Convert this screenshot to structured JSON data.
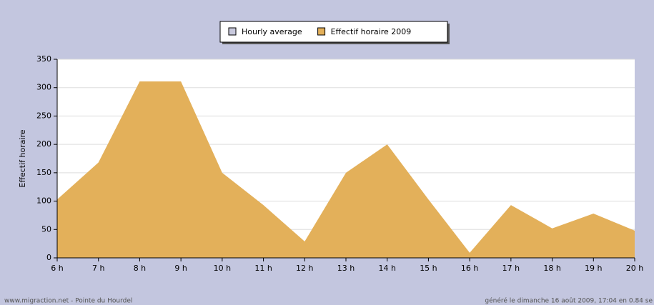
{
  "chart_data": {
    "type": "area",
    "categories": [
      "6 h",
      "7 h",
      "8 h",
      "9 h",
      "10 h",
      "11 h",
      "12 h",
      "13 h",
      "14 h",
      "15 h",
      "16 h",
      "17 h",
      "18 h",
      "19 h",
      "20 h"
    ],
    "series": [
      {
        "name": "Hourly average",
        "color": "#c8c9dd",
        "values": [
          null,
          null,
          null,
          null,
          null,
          null,
          null,
          null,
          null,
          null,
          null,
          null,
          null,
          null,
          null
        ]
      },
      {
        "name": "Effectif horaire 2009",
        "color": "#e3b05a",
        "values": [
          103,
          168,
          311,
          311,
          150,
          93,
          29,
          150,
          200,
          103,
          9,
          93,
          52,
          78,
          48
        ]
      }
    ],
    "y_label": "Effectif horaire",
    "ylim": [
      0,
      350
    ],
    "yticks": [
      0,
      50,
      100,
      150,
      200,
      250,
      300,
      350
    ],
    "grid": true,
    "footer_left": "www.migraction.net - Pointe du Hourdel",
    "footer_right": "généré le dimanche 16 août 2009, 17:04 en 0.84 se"
  }
}
